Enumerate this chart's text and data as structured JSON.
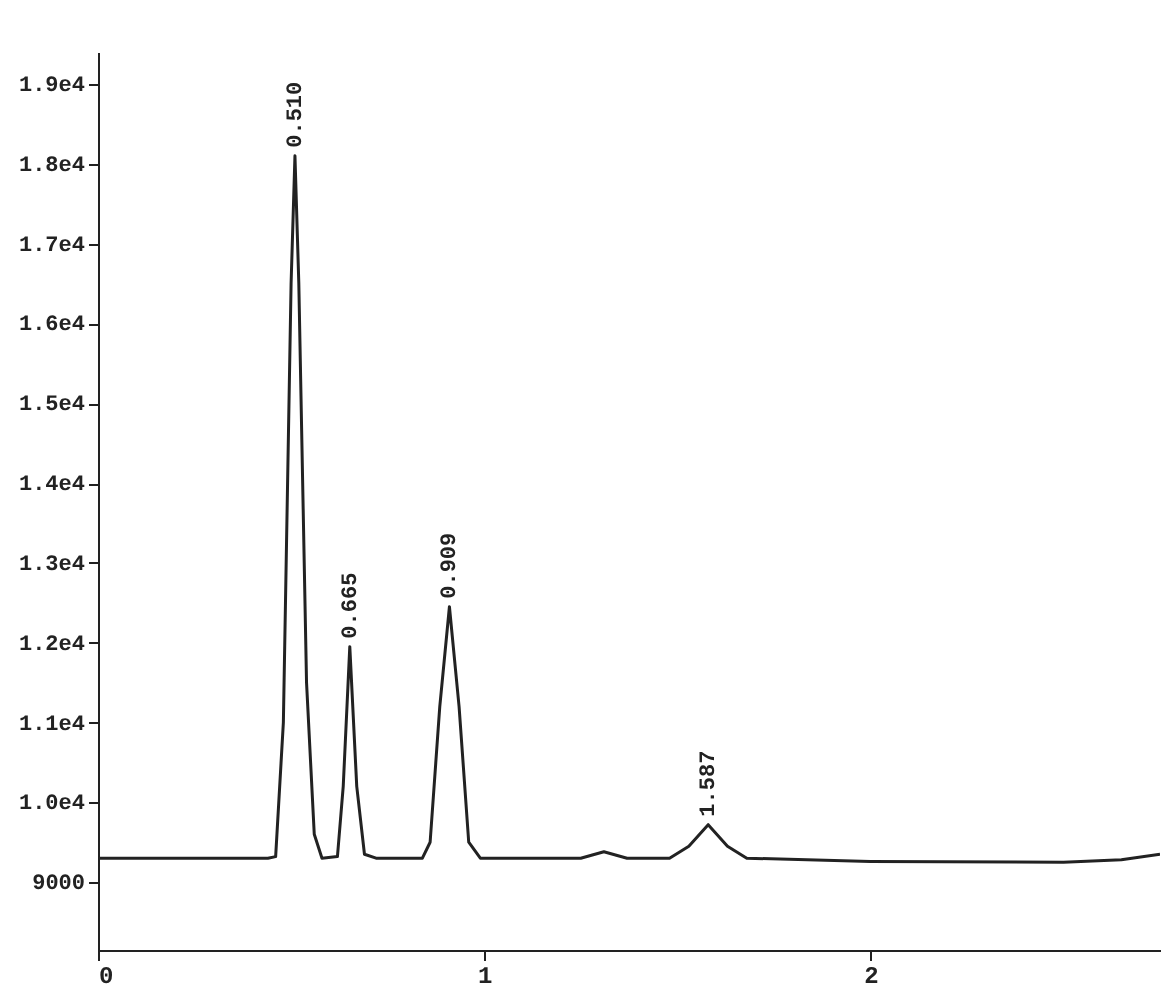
{
  "chart_data": {
    "type": "line",
    "color": "#222222",
    "x": [
      0,
      0.44,
      0.46,
      0.48,
      0.5,
      0.51,
      0.52,
      0.54,
      0.56,
      0.58,
      0.62,
      0.635,
      0.652,
      0.67,
      0.69,
      0.72,
      0.84,
      0.86,
      0.885,
      0.91,
      0.935,
      0.96,
      0.99,
      1.25,
      1.31,
      1.37,
      1.48,
      1.53,
      1.58,
      1.63,
      1.68,
      2.0,
      2.5,
      2.65,
      2.75
    ],
    "values": [
      9300,
      9300,
      9320,
      11000,
      16500,
      18100,
      16500,
      11500,
      9600,
      9300,
      9320,
      10200,
      11950,
      10200,
      9350,
      9300,
      9300,
      9500,
      11200,
      12450,
      11200,
      9500,
      9300,
      9300,
      9380,
      9300,
      9300,
      9450,
      9720,
      9450,
      9300,
      9260,
      9250,
      9280,
      9350
    ],
    "xlim": [
      0,
      2.75
    ],
    "xticks": [
      0,
      1,
      2
    ],
    "ylim": [
      8150,
      19400
    ],
    "yticks": [
      9000,
      {
        "value": 10000,
        "label": "1.0e4"
      },
      {
        "value": 11000,
        "label": "1.1e4"
      },
      {
        "value": 12000,
        "label": "1.2e4"
      },
      {
        "value": 13000,
        "label": "1.3e4"
      },
      {
        "value": 14000,
        "label": "1.4e4"
      },
      {
        "value": 15000,
        "label": "1.5e4"
      },
      {
        "value": 16000,
        "label": "1.6e4"
      },
      {
        "value": 17000,
        "label": "1.7e4"
      },
      {
        "value": 18000,
        "label": "1.8e4"
      },
      {
        "value": 19000,
        "label": "1.9e4"
      }
    ],
    "annotations": [
      {
        "text": "0.510",
        "x": 0.51,
        "y": 18100
      },
      {
        "text": "0.665",
        "x": 0.652,
        "y": 11950
      },
      {
        "text": "0.909",
        "x": 0.91,
        "y": 12450
      },
      {
        "text": "1.587",
        "x": 1.58,
        "y": 9720
      }
    ],
    "grid": false,
    "marker": "none",
    "line_style": "solid"
  }
}
